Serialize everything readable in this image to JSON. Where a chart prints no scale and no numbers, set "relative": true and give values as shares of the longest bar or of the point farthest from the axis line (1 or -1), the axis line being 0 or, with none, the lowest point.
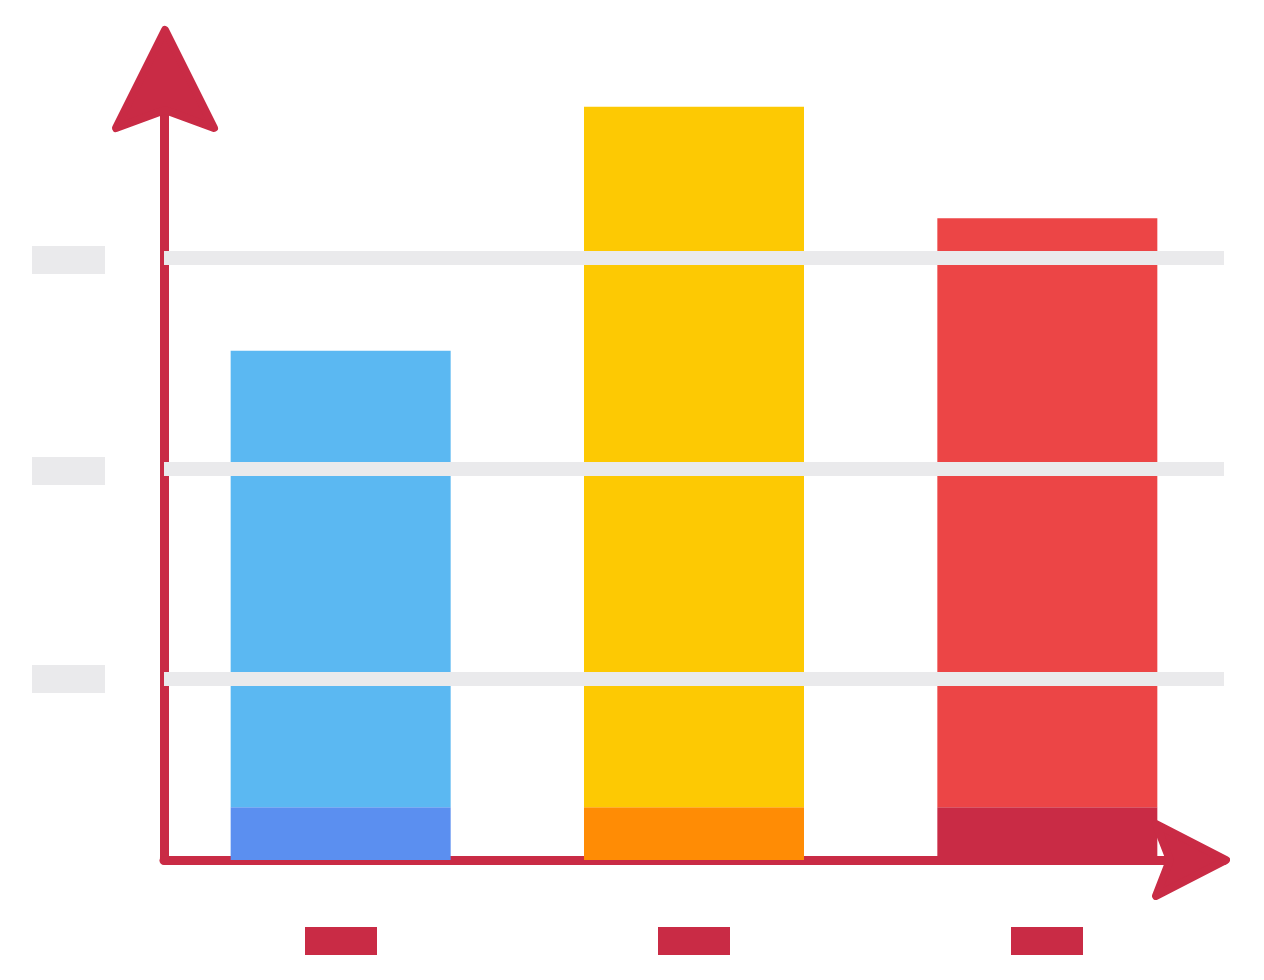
{
  "chart_data": {
    "type": "bar",
    "relative": true,
    "stacked": true,
    "categories": [
      null,
      null,
      null
    ],
    "series": [
      {
        "colors": [
          "#5b8ff0",
          "#ff8c05",
          "#c92b45"
        ],
        "values": [
          0.07,
          0.07,
          0.07
        ]
      },
      {
        "colors": [
          "#5bb8f2",
          "#fdc903",
          "#ec4546"
        ],
        "values": [
          0.606,
          0.93,
          0.782
        ]
      }
    ],
    "ref_lines": [
      {
        "axis": "y",
        "value": 0.24,
        "color": "#eaeaec"
      },
      {
        "axis": "y",
        "value": 0.516,
        "color": "#eaeaec"
      },
      {
        "axis": "y",
        "value": 0.797,
        "color": "#eaeaec"
      }
    ],
    "grid": false
  }
}
